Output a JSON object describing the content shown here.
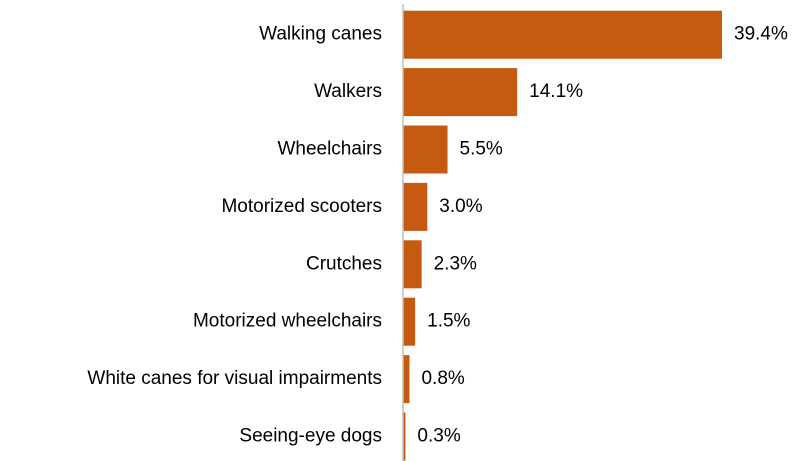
{
  "chart_data": {
    "type": "bar",
    "orientation": "horizontal",
    "categories": [
      "Walking canes",
      "Walkers",
      "Wheelchairs",
      "Motorized scooters",
      "Crutches",
      "Motorized wheelchairs",
      "White canes for visual impairments",
      "Seeing-eye dogs"
    ],
    "values": [
      39.4,
      14.1,
      5.5,
      3.0,
      2.3,
      1.5,
      0.8,
      0.3
    ],
    "value_labels": [
      "39.4%",
      "14.1%",
      "5.5%",
      "3.0%",
      "2.3%",
      "1.5%",
      "0.8%",
      "0.3%"
    ],
    "color": "#c55a11"
  }
}
